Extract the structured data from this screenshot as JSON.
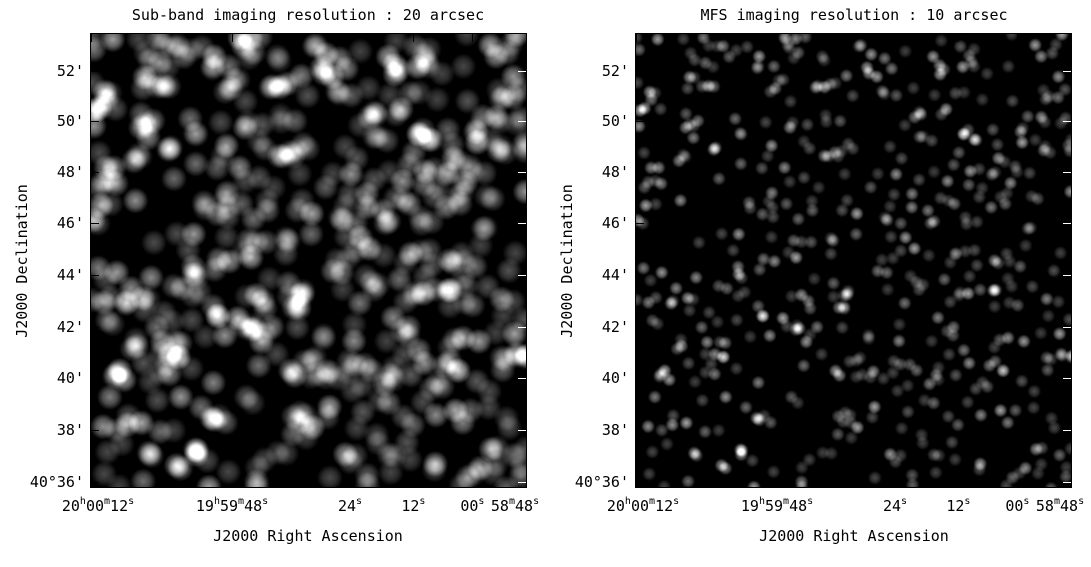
{
  "panels": [
    {
      "title": "Sub-band imaging resolution : 20 arcsec",
      "ytitle": "J2000 Declination",
      "xtitle": "J2000 Right Ascension",
      "yticks": [
        "52'",
        "50'",
        "48'",
        "46'",
        "44'",
        "42'",
        "40'",
        "38'",
        "40°36'"
      ],
      "xticks": [
        {
          "main": "20",
          "u1": "h",
          "m": "00",
          "u2": "m",
          "s": "12",
          "u3": "s"
        },
        {
          "main": "19",
          "u1": "h",
          "m": "59",
          "u2": "m",
          "s": "48",
          "u3": "s"
        },
        {
          "main": "",
          "u1": "",
          "m": "",
          "u2": "",
          "s": "24",
          "u3": "s"
        },
        {
          "main": "",
          "u1": "",
          "m": "",
          "u2": "",
          "s": "12",
          "u3": "s"
        },
        {
          "main": "",
          "u1": "",
          "m": "",
          "u2": "",
          "s": "00",
          "u3": "s"
        },
        {
          "main": "",
          "u1": "",
          "m": "58",
          "u2": "m",
          "s": "48",
          "u3": "s"
        }
      ],
      "resolution_arcsec": 20
    },
    {
      "title": "MFS imaging resolution : 10 arcsec",
      "ytitle": "J2000 Declination",
      "xtitle": "J2000 Right Ascension",
      "yticks": [
        "52'",
        "50'",
        "48'",
        "46'",
        "44'",
        "42'",
        "40'",
        "38'",
        "40°36'"
      ],
      "xticks": [
        {
          "main": "20",
          "u1": "h",
          "m": "00",
          "u2": "m",
          "s": "12",
          "u3": "s"
        },
        {
          "main": "19",
          "u1": "h",
          "m": "59",
          "u2": "m",
          "s": "48",
          "u3": "s"
        },
        {
          "main": "",
          "u1": "",
          "m": "",
          "u2": "",
          "s": "24",
          "u3": "s"
        },
        {
          "main": "",
          "u1": "",
          "m": "",
          "u2": "",
          "s": "12",
          "u3": "s"
        },
        {
          "main": "",
          "u1": "",
          "m": "",
          "u2": "",
          "s": "00",
          "u3": "s"
        },
        {
          "main": "",
          "u1": "",
          "m": "58",
          "u2": "m",
          "s": "48",
          "u3": "s"
        }
      ],
      "resolution_arcsec": 10
    }
  ],
  "colors": {
    "background": "#000000",
    "source": "#ffffff",
    "axes": "#000000"
  }
}
